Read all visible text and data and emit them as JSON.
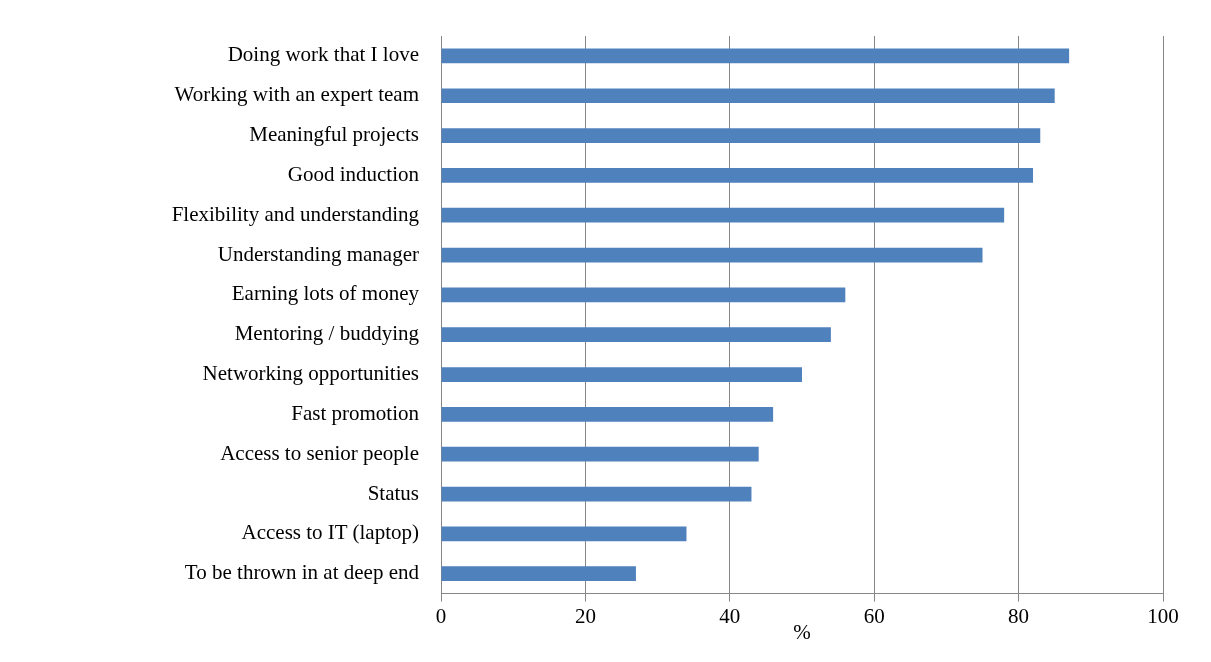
{
  "chart_data": {
    "type": "bar",
    "orientation": "horizontal",
    "xlabel": "%",
    "categories": [
      "Doing work that I love",
      "Working with an expert team",
      "Meaningful projects",
      "Good induction",
      "Flexibility and understanding",
      "Understanding manager",
      "Earning lots of money",
      "Mentoring / buddying",
      "Networking opportunities",
      "Fast promotion",
      "Access to senior people",
      "Status",
      "Access to IT (laptop)",
      "To be thrown in at deep end"
    ],
    "values": [
      87,
      85,
      83,
      82,
      78,
      75,
      56,
      54,
      50,
      46,
      44,
      43,
      34,
      27
    ],
    "color": "#4f81bd",
    "xlim": [
      0,
      100
    ],
    "xticks": [
      0,
      20,
      40,
      60,
      80,
      100
    ],
    "grid": "x",
    "legend": false
  }
}
